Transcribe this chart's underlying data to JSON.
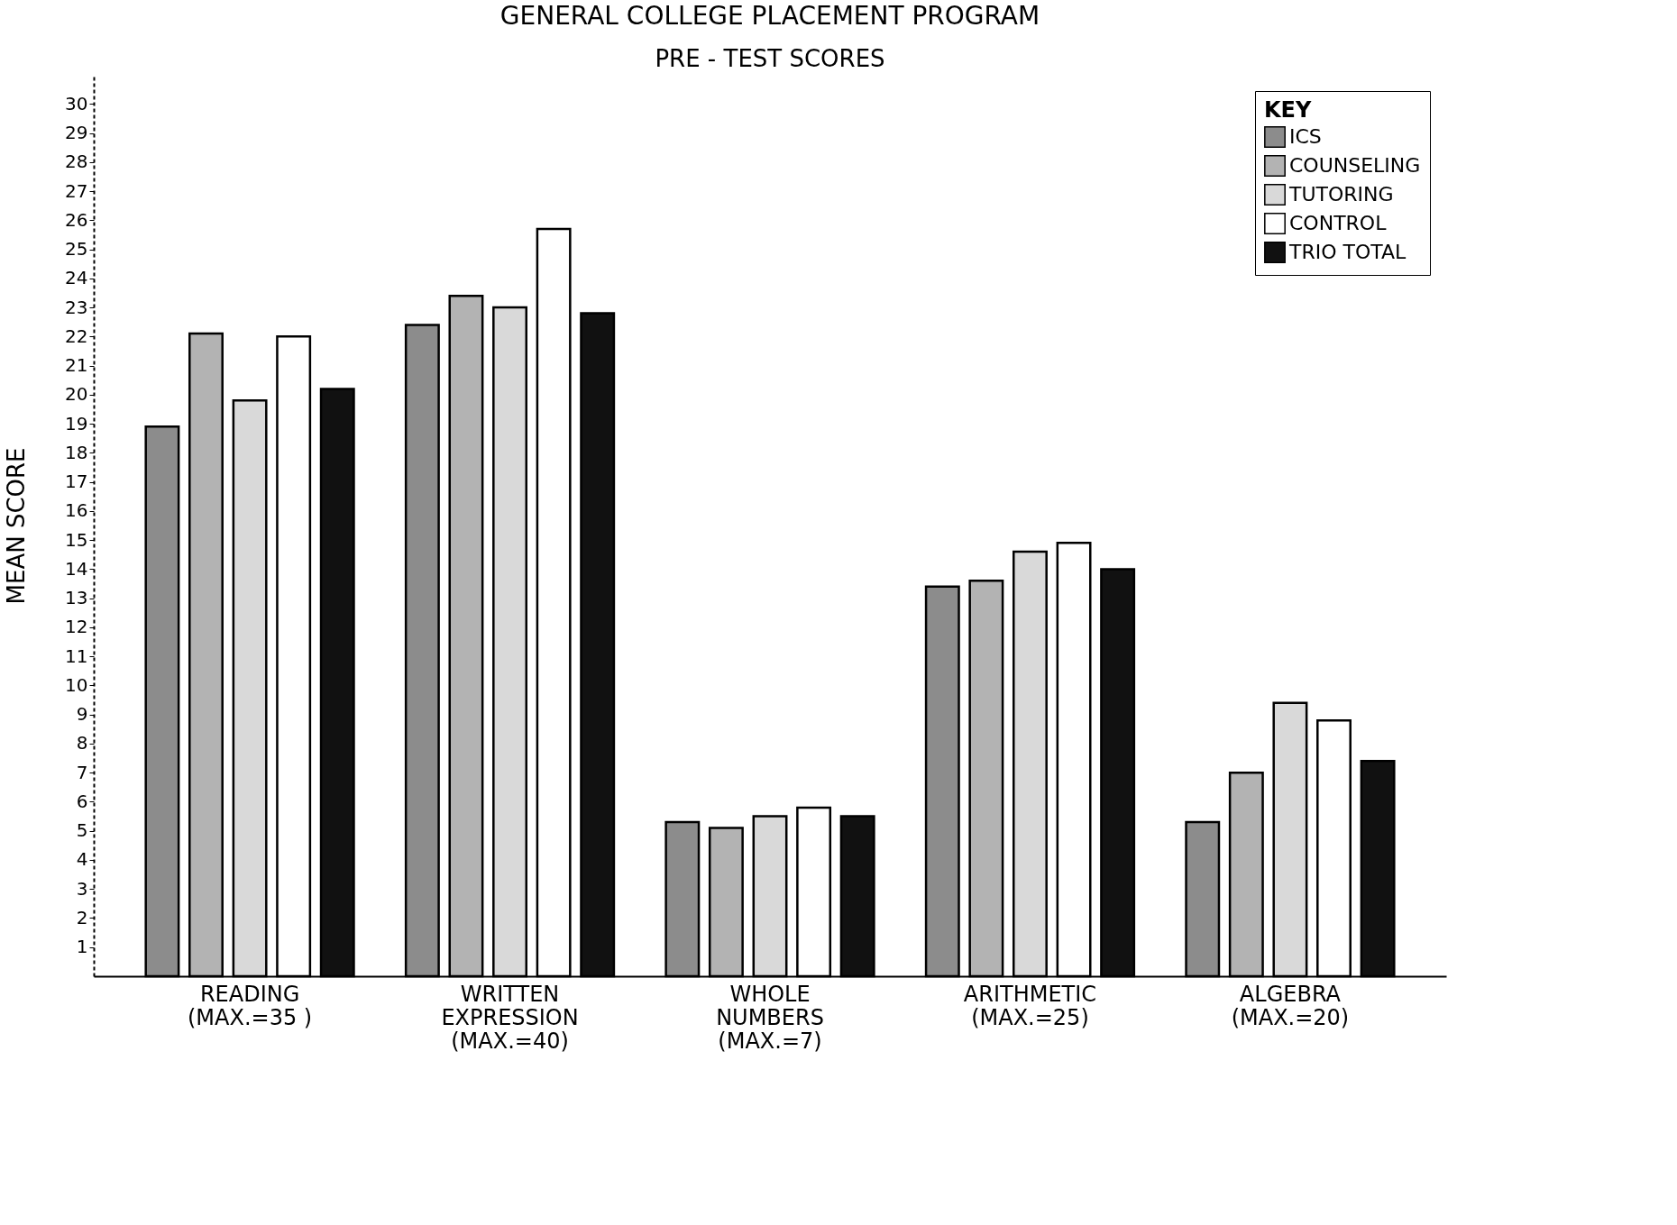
{
  "chart_data": {
    "type": "bar",
    "title": "GENERAL COLLEGE PLACEMENT PROGRAM",
    "subtitle": "PRE - TEST SCORES",
    "ylabel": "MEAN SCORE",
    "legend_title": "KEY",
    "categories": [
      "READING\n(MAX.=35 )",
      "WRITTEN\nEXPRESSION\n(MAX.=40)",
      "WHOLE\nNUMBERS\n(MAX.=7)",
      "ARITHMETIC\n(MAX.=25)",
      "ALGEBRA\n(MAX.=20)"
    ],
    "series": [
      {
        "name": "ICS",
        "color": "#8c8c8c",
        "values": [
          18.9,
          22.4,
          5.3,
          13.4,
          5.3
        ]
      },
      {
        "name": "COUNSELING",
        "color": "#b3b3b3",
        "values": [
          22.1,
          23.4,
          5.1,
          13.6,
          7.0
        ]
      },
      {
        "name": "TUTORING",
        "color": "#d9d9d9",
        "values": [
          19.8,
          23.0,
          5.5,
          14.6,
          9.4
        ]
      },
      {
        "name": "CONTROL",
        "color": "#ffffff",
        "values": [
          22.0,
          25.7,
          5.8,
          14.9,
          8.8
        ]
      },
      {
        "name": "TRIO TOTAL",
        "color": "#111111",
        "values": [
          20.2,
          22.8,
          5.5,
          14.0,
          7.4
        ]
      }
    ],
    "ylim": [
      0,
      31
    ],
    "yticks": [
      1,
      2,
      3,
      4,
      5,
      6,
      7,
      8,
      9,
      10,
      11,
      12,
      13,
      14,
      15,
      16,
      17,
      18,
      19,
      20,
      21,
      22,
      23,
      24,
      25,
      26,
      27,
      28,
      29,
      30
    ],
    "grid": false,
    "legend": "top right"
  }
}
